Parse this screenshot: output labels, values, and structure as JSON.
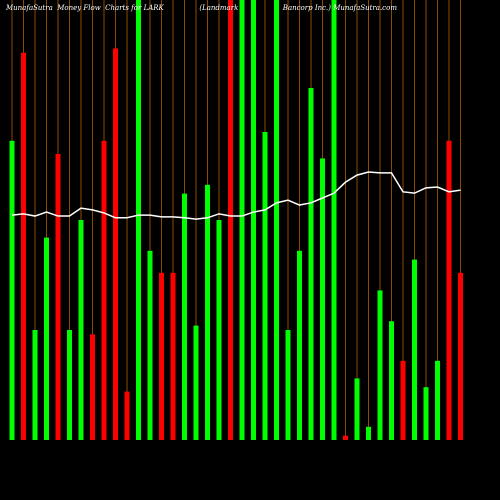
{
  "chart_data": {
    "type": "bar",
    "title": "MunafaSutra  Money Flow  Charts for LARK                (Landmark                    Bancorp Inc.) MunafaSutra.com",
    "categories": [
      null,
      null,
      null,
      null,
      null,
      null,
      null,
      null,
      null,
      null,
      null,
      null,
      null,
      null,
      null,
      null,
      null,
      null,
      null,
      null,
      null,
      null,
      null,
      null,
      null,
      null,
      null,
      null,
      null,
      null,
      null,
      null,
      null,
      null,
      null,
      null,
      null,
      null,
      null,
      null
    ],
    "values": [
      68,
      88,
      25,
      46,
      65,
      25,
      50,
      24,
      68,
      89,
      11,
      100,
      43,
      38,
      38,
      56,
      26,
      58,
      50,
      100,
      100,
      100,
      70,
      100,
      25,
      43,
      80,
      64,
      100,
      1,
      14,
      3,
      34,
      27,
      18,
      41,
      12,
      18,
      68,
      38
    ],
    "colors": [
      "#00ff00",
      "#ff0000",
      "#00ff00",
      "#00ff00",
      "#ff0000",
      "#00ff00",
      "#00ff00",
      "#ff0000",
      "#ff0000",
      "#ff0000",
      "#ff0000",
      "#00ff00",
      "#00ff00",
      "#ff0000",
      "#ff0000",
      "#00ff00",
      "#00ff00",
      "#00ff00",
      "#00ff00",
      "#ff0000",
      "#00ff00",
      "#00ff00",
      "#00ff00",
      "#00ff00",
      "#00ff00",
      "#00ff00",
      "#00ff00",
      "#00ff00",
      "#00ff00",
      "#ff0000",
      "#00ff00",
      "#00ff00",
      "#00ff00",
      "#00ff00",
      "#ff0000",
      "#00ff00",
      "#00ff00",
      "#00ff00",
      "#ff0000",
      "#ff0000"
    ],
    "line": {
      "color": "#ffffff",
      "values": [
        51.1,
        51.4,
        50.9,
        51.8,
        50.9,
        50.9,
        52.7,
        52.3,
        51.6,
        50.5,
        50.5,
        51.1,
        51.1,
        50.7,
        50.7,
        50.5,
        50.2,
        50.5,
        51.4,
        50.9,
        50.9,
        51.8,
        52.3,
        53.9,
        54.5,
        53.4,
        53.9,
        55.0,
        56.1,
        58.6,
        60.2,
        60.9,
        60.7,
        60.7,
        56.4,
        56.1,
        57.3,
        57.5,
        56.4,
        56.8
      ]
    },
    "ylim": [
      0,
      100
    ],
    "grid": true,
    "grid_color": "#8b4a00"
  }
}
